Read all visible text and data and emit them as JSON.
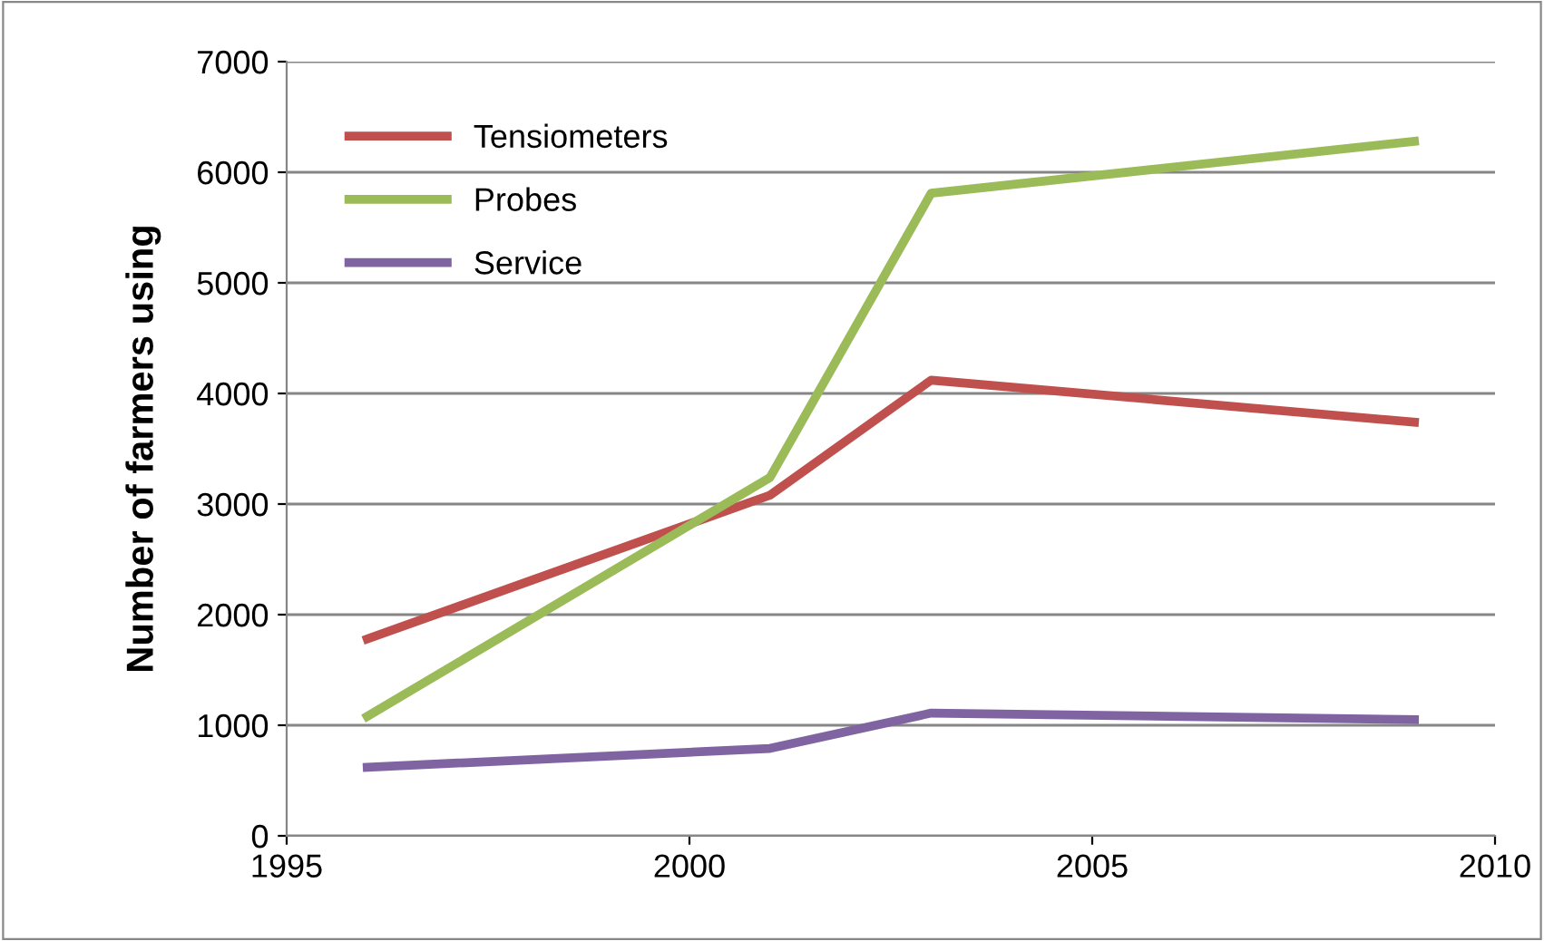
{
  "chart_data": {
    "type": "line",
    "ylabel": "Number of farmers using",
    "x": [
      1996,
      2001,
      2003,
      2009
    ],
    "series": [
      {
        "name": "Tensiometers",
        "color": "#c0504d",
        "values": [
          1780,
          3080,
          4120,
          3740
        ]
      },
      {
        "name": "Probes",
        "color": "#9bbb59",
        "values": [
          1080,
          3240,
          5810,
          6280
        ]
      },
      {
        "name": "Service",
        "color": "#8064a2",
        "values": [
          620,
          790,
          1110,
          1050
        ]
      }
    ],
    "xlim": [
      1995,
      2010
    ],
    "xticks": [
      1995,
      2000,
      2005,
      2010
    ],
    "ylim": [
      0,
      7000
    ],
    "yticks": [
      0,
      1000,
      2000,
      3000,
      4000,
      5000,
      6000,
      7000
    ],
    "grid": "y",
    "legend": "top left",
    "marker": "none",
    "line_style": "solid"
  }
}
